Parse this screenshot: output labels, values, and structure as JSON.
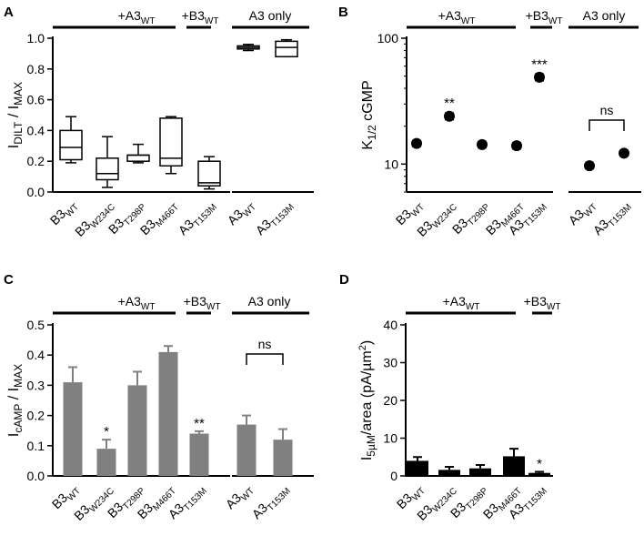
{
  "chart_data": [
    {
      "panel": "A",
      "type": "box",
      "ylabel": "I_DILT / I_MAX",
      "ylabel_main": "I",
      "ylabel_sub": "DILT",
      "ylabel_rest": " / I",
      "ylabel_sub2": "MAX",
      "ylim": [
        0,
        1.0
      ],
      "yticks": [
        "0.0",
        "0.2",
        "0.4",
        "0.6",
        "0.8",
        "1.0"
      ],
      "yticks_num": [
        0,
        0.2,
        0.4,
        0.6,
        0.8,
        1.0
      ],
      "groups": [
        {
          "label": "+A3",
          "label_sub": "WT"
        },
        {
          "label": "+B3",
          "label_sub": "WT"
        },
        {
          "label": "A3 only",
          "label_sub": ""
        }
      ],
      "categories": [
        {
          "main": "B3",
          "sub": "WT"
        },
        {
          "main": "B3",
          "sub": "W234C"
        },
        {
          "main": "B3",
          "sub": "T298P"
        },
        {
          "main": "B3",
          "sub": "M466T"
        },
        {
          "main": "A3",
          "sub": "T153M"
        },
        {
          "main": "A3",
          "sub": "WT"
        },
        {
          "main": "A3",
          "sub": "T153M"
        }
      ],
      "boxes": [
        {
          "min": 0.19,
          "q1": 0.21,
          "median": 0.29,
          "q3": 0.4,
          "max": 0.49
        },
        {
          "min": 0.03,
          "q1": 0.08,
          "median": 0.12,
          "q3": 0.22,
          "max": 0.36
        },
        {
          "min": 0.19,
          "q1": 0.2,
          "median": 0.24,
          "q3": 0.24,
          "max": 0.31
        },
        {
          "min": 0.12,
          "q1": 0.17,
          "median": 0.22,
          "q3": 0.48,
          "max": 0.49
        },
        {
          "min": 0.02,
          "q1": 0.04,
          "median": 0.06,
          "q3": 0.2,
          "max": 0.23
        },
        {
          "min": 0.92,
          "q1": 0.93,
          "median": 0.94,
          "q3": 0.95,
          "max": 0.96
        },
        {
          "min": 0.88,
          "q1": 0.88,
          "median": 0.94,
          "q3": 0.98,
          "max": 0.99
        }
      ]
    },
    {
      "panel": "B",
      "type": "scatter",
      "ylabel": "K_1/2 cGMP",
      "ylabel_main": "K",
      "ylabel_sub": "1/2",
      "ylabel_rest": " cGMP",
      "yscale": "log",
      "ylim": [
        6,
        100
      ],
      "yticks": [
        "10",
        "100"
      ],
      "yticks_num": [
        10,
        100
      ],
      "groups": [
        {
          "label": "+A3",
          "label_sub": "WT"
        },
        {
          "label": "+B3",
          "label_sub": "WT"
        },
        {
          "label": "A3 only",
          "label_sub": ""
        }
      ],
      "categories": [
        {
          "main": "B3",
          "sub": "WT"
        },
        {
          "main": "B3",
          "sub": "W234C"
        },
        {
          "main": "B3",
          "sub": "T298P"
        },
        {
          "main": "B3",
          "sub": "M466T"
        },
        {
          "main": "A3",
          "sub": "T153M"
        },
        {
          "main": "A3",
          "sub": "WT"
        },
        {
          "main": "A3",
          "sub": "T153M"
        }
      ],
      "values": [
        14.6,
        24.0,
        14.3,
        14.0,
        49.0,
        9.7,
        12.2
      ],
      "errors": [
        0.8,
        1.5,
        0.8,
        0.8,
        3.0,
        0.5,
        0.6
      ],
      "annotations": [
        "",
        "**",
        "",
        "",
        "***",
        "",
        ""
      ],
      "bracket": {
        "from": 5,
        "to": 6,
        "label": "ns"
      }
    },
    {
      "panel": "C",
      "type": "bar",
      "ylabel": "I_cAMP / I_MAX",
      "ylabel_main": "I",
      "ylabel_sub": "cAMP",
      "ylabel_rest": " / I",
      "ylabel_sub2": "MAX",
      "ylim": [
        0,
        0.5
      ],
      "yticks": [
        "0.0",
        "0.1",
        "0.2",
        "0.3",
        "0.4",
        "0.5"
      ],
      "yticks_num": [
        0,
        0.1,
        0.2,
        0.3,
        0.4,
        0.5
      ],
      "groups": [
        {
          "label": "+A3",
          "label_sub": "WT"
        },
        {
          "label": "+B3",
          "label_sub": "WT"
        },
        {
          "label": "A3 only",
          "label_sub": ""
        }
      ],
      "categories": [
        {
          "main": "B3",
          "sub": "WT"
        },
        {
          "main": "B3",
          "sub": "W234C"
        },
        {
          "main": "B3",
          "sub": "T298P"
        },
        {
          "main": "B3",
          "sub": "M466T"
        },
        {
          "main": "A3",
          "sub": "T153M"
        },
        {
          "main": "A3",
          "sub": "WT"
        },
        {
          "main": "A3",
          "sub": "T153M"
        }
      ],
      "values": [
        0.31,
        0.09,
        0.3,
        0.41,
        0.14,
        0.17,
        0.12
      ],
      "errors": [
        0.05,
        0.03,
        0.045,
        0.02,
        0.008,
        0.03,
        0.035
      ],
      "annotations": [
        "",
        "*",
        "",
        "",
        "**",
        "",
        ""
      ],
      "bracket": {
        "from": 5,
        "to": 6,
        "label": "ns"
      },
      "bar_color": "#808080"
    },
    {
      "panel": "D",
      "type": "bar",
      "ylabel": "I_5µM/area (pA/µm²)",
      "ylabel_main": "I",
      "ylabel_sub": "5µM",
      "ylabel_rest": "/area (pA/µm",
      "ylabel_sup": "2",
      "ylabel_end": ")",
      "ylim": [
        0,
        40
      ],
      "yticks": [
        "0",
        "10",
        "20",
        "30",
        "40"
      ],
      "yticks_num": [
        0,
        10,
        20,
        30,
        40
      ],
      "groups": [
        {
          "label": "+A3",
          "label_sub": "WT"
        },
        {
          "label": "+B3",
          "label_sub": "WT"
        }
      ],
      "categories": [
        {
          "main": "B3",
          "sub": "WT"
        },
        {
          "main": "B3",
          "sub": "W234C"
        },
        {
          "main": "B3",
          "sub": "T298P"
        },
        {
          "main": "B3",
          "sub": "M466T"
        },
        {
          "main": "A3",
          "sub": "T153M"
        }
      ],
      "values": [
        4.0,
        1.6,
        2.0,
        5.2,
        0.8
      ],
      "errors": [
        1.0,
        0.8,
        0.9,
        2.0,
        0.3
      ],
      "annotations": [
        "",
        "",
        "",
        "",
        "*"
      ],
      "bar_color": "#000000"
    }
  ]
}
